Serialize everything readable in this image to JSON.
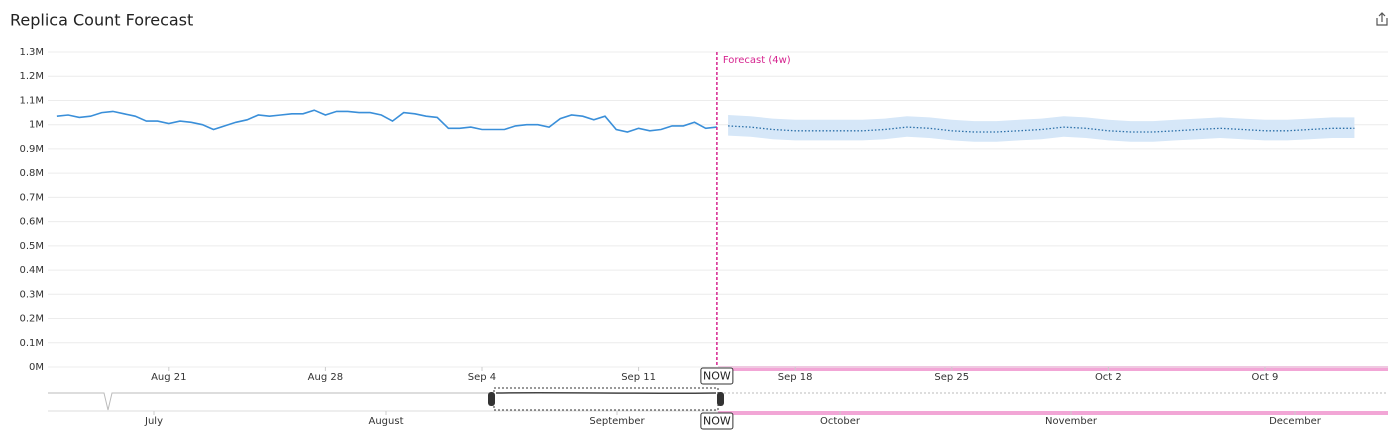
{
  "chart_data": {
    "type": "line",
    "title": "Replica Count Forecast",
    "annotation": "Forecast (4w)",
    "now_label": "NOW",
    "now_x": 257.5,
    "xlim": [
      227.6,
      287.5
    ],
    "xticks": [
      {
        "value": 233,
        "label": "Aug 21"
      },
      {
        "value": 240,
        "label": "Aug 28"
      },
      {
        "value": 247,
        "label": "Sep 4"
      },
      {
        "value": 254,
        "label": "Sep 11"
      },
      {
        "value": 261,
        "label": "Sep 18"
      },
      {
        "value": 268,
        "label": "Sep 25"
      },
      {
        "value": 275,
        "label": "Oct 2"
      },
      {
        "value": 282,
        "label": "Oct 9"
      }
    ],
    "ylim": [
      0,
      1300000
    ],
    "yticks": [
      {
        "value": 0,
        "label": "0M"
      },
      {
        "value": 100000,
        "label": "0.1M"
      },
      {
        "value": 200000,
        "label": "0.2M"
      },
      {
        "value": 300000,
        "label": "0.3M"
      },
      {
        "value": 400000,
        "label": "0.4M"
      },
      {
        "value": 500000,
        "label": "0.5M"
      },
      {
        "value": 600000,
        "label": "0.6M"
      },
      {
        "value": 700000,
        "label": "0.7M"
      },
      {
        "value": 800000,
        "label": "0.8M"
      },
      {
        "value": 900000,
        "label": "0.9M"
      },
      {
        "value": 1000000,
        "label": "1M"
      },
      {
        "value": 1100000,
        "label": "1.1M"
      },
      {
        "value": 1200000,
        "label": "1.2M"
      },
      {
        "value": 1300000,
        "label": "1.3M"
      }
    ],
    "grid": true,
    "history": {
      "color": "#3a8fd9",
      "x": [
        228,
        228.5,
        229,
        229.5,
        230,
        230.5,
        231,
        231.5,
        232,
        232.5,
        233,
        233.5,
        234,
        234.5,
        235,
        235.5,
        236,
        236.5,
        237,
        237.5,
        238,
        238.5,
        239,
        239.5,
        240,
        240.5,
        241,
        241.5,
        242,
        242.5,
        243,
        243.5,
        244,
        244.5,
        245,
        245.5,
        246,
        246.5,
        247,
        247.5,
        248,
        248.5,
        249,
        249.5,
        250,
        250.5,
        251,
        251.5,
        252,
        252.5,
        253,
        253.5,
        254,
        254.5,
        255,
        255.5,
        256,
        256.5,
        257,
        257.5
      ],
      "values": [
        1035000,
        1040000,
        1030000,
        1035000,
        1050000,
        1055000,
        1045000,
        1035000,
        1015000,
        1015000,
        1005000,
        1015000,
        1010000,
        1000000,
        980000,
        995000,
        1010000,
        1020000,
        1040000,
        1035000,
        1040000,
        1045000,
        1045000,
        1060000,
        1040000,
        1055000,
        1055000,
        1050000,
        1050000,
        1040000,
        1015000,
        1050000,
        1045000,
        1035000,
        1030000,
        985000,
        985000,
        990000,
        980000,
        980000,
        980000,
        995000,
        1000000,
        1000000,
        990000,
        1025000,
        1040000,
        1035000,
        1020000,
        1035000,
        980000,
        970000,
        985000,
        975000,
        980000,
        995000,
        995000,
        1010000,
        985000,
        990000
      ]
    },
    "forecast": {
      "color": "#2a6fa8",
      "band_color": "#d6e7f8",
      "x": [
        258,
        259,
        260,
        261,
        262,
        263,
        264,
        265,
        266,
        267,
        268,
        269,
        270,
        271,
        272,
        273,
        274,
        275,
        276,
        277,
        278,
        279,
        280,
        281,
        282,
        283,
        284,
        285,
        286
      ],
      "values": [
        995000,
        990000,
        980000,
        975000,
        975000,
        975000,
        975000,
        980000,
        990000,
        985000,
        975000,
        970000,
        970000,
        975000,
        980000,
        990000,
        985000,
        975000,
        970000,
        970000,
        975000,
        980000,
        985000,
        980000,
        975000,
        975000,
        980000,
        985000,
        985000
      ],
      "lower": [
        955000,
        950000,
        940000,
        935000,
        935000,
        935000,
        935000,
        940000,
        950000,
        945000,
        935000,
        930000,
        930000,
        935000,
        940000,
        950000,
        945000,
        935000,
        930000,
        930000,
        935000,
        940000,
        945000,
        940000,
        935000,
        935000,
        940000,
        945000,
        945000
      ],
      "upper": [
        1040000,
        1035000,
        1025000,
        1020000,
        1020000,
        1020000,
        1020000,
        1025000,
        1035000,
        1030000,
        1020000,
        1015000,
        1015000,
        1020000,
        1025000,
        1035000,
        1030000,
        1020000,
        1015000,
        1015000,
        1020000,
        1025000,
        1030000,
        1025000,
        1020000,
        1020000,
        1025000,
        1030000,
        1030000
      ]
    },
    "navigator": {
      "months": [
        "July",
        "August",
        "September",
        "October",
        "November",
        "December"
      ]
    }
  }
}
